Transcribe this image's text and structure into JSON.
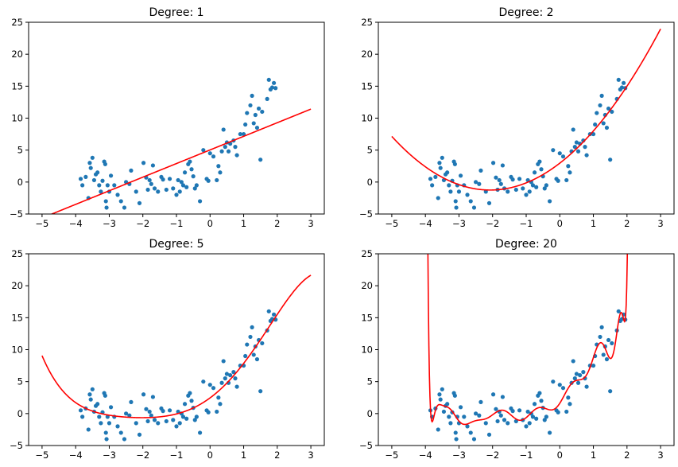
{
  "chart_data": [
    {
      "type": "scatter",
      "title": "Degree: 1",
      "xlim": [
        -5.4,
        3.4
      ],
      "ylim": [
        -5,
        25
      ],
      "xticks": [
        -5,
        -4,
        -3,
        -2,
        -1,
        0,
        1,
        2,
        3
      ],
      "yticks": [
        -5,
        0,
        5,
        10,
        15,
        20,
        25
      ],
      "xtick_labels": [
        "−5",
        "−4",
        "−3",
        "−2",
        "−1",
        "0",
        "1",
        "2",
        "3"
      ],
      "ytick_labels": [
        "−5",
        "0",
        "5",
        "10",
        "15",
        "20",
        "25"
      ],
      "fit": {
        "degree": 1,
        "color": "#ff0000"
      },
      "points_color": "#1f77b4"
    },
    {
      "type": "scatter",
      "title": "Degree: 2",
      "xlim": [
        -5.4,
        3.4
      ],
      "ylim": [
        -5,
        25
      ],
      "xticks": [
        -5,
        -4,
        -3,
        -2,
        -1,
        0,
        1,
        2,
        3
      ],
      "yticks": [
        -5,
        0,
        5,
        10,
        15,
        20,
        25
      ],
      "xtick_labels": [
        "−5",
        "−4",
        "−3",
        "−2",
        "−1",
        "0",
        "1",
        "2",
        "3"
      ],
      "ytick_labels": [
        "−5",
        "0",
        "5",
        "10",
        "15",
        "20",
        "25"
      ],
      "fit": {
        "degree": 2,
        "color": "#ff0000"
      },
      "points_color": "#1f77b4"
    },
    {
      "type": "scatter",
      "title": "Degree: 5",
      "xlim": [
        -5.4,
        3.4
      ],
      "ylim": [
        -5,
        25
      ],
      "xticks": [
        -5,
        -4,
        -3,
        -2,
        -1,
        0,
        1,
        2,
        3
      ],
      "yticks": [
        -5,
        0,
        5,
        10,
        15,
        20,
        25
      ],
      "xtick_labels": [
        "−5",
        "−4",
        "−3",
        "−2",
        "−1",
        "0",
        "1",
        "2",
        "3"
      ],
      "ytick_labels": [
        "−5",
        "0",
        "5",
        "10",
        "15",
        "20",
        "25"
      ],
      "fit": {
        "degree": 5,
        "color": "#ff0000"
      },
      "points_color": "#1f77b4"
    },
    {
      "type": "scatter",
      "title": "Degree: 20",
      "xlim": [
        -5.4,
        3.4
      ],
      "ylim": [
        -5,
        25
      ],
      "xticks": [
        -5,
        -4,
        -3,
        -2,
        -1,
        0,
        1,
        2,
        3
      ],
      "yticks": [
        -5,
        0,
        5,
        10,
        15,
        20,
        25
      ],
      "xtick_labels": [
        "−5",
        "−4",
        "−3",
        "−2",
        "−1",
        "0",
        "1",
        "2",
        "3"
      ],
      "ytick_labels": [
        "−5",
        "0",
        "5",
        "10",
        "15",
        "20",
        "25"
      ],
      "fit": {
        "degree": 20,
        "color": "#ff0000"
      },
      "points_color": "#1f77b4"
    }
  ],
  "shared_points": {
    "x": [
      -3.85,
      -3.8,
      -3.7,
      -3.62,
      -3.58,
      -3.55,
      -3.5,
      -3.45,
      -3.4,
      -3.35,
      -3.3,
      -3.25,
      -3.2,
      -3.15,
      -3.12,
      -3.1,
      -3.08,
      -3.05,
      -3.0,
      -2.95,
      -2.85,
      -2.75,
      -2.65,
      -2.55,
      -2.5,
      -2.4,
      -2.35,
      -2.2,
      -2.1,
      -1.98,
      -1.9,
      -1.85,
      -1.8,
      -1.75,
      -1.7,
      -1.65,
      -1.55,
      -1.45,
      -1.4,
      -1.3,
      -1.2,
      -1.1,
      -1.0,
      -0.95,
      -0.9,
      -0.85,
      -0.8,
      -0.75,
      -0.7,
      -0.65,
      -0.6,
      -0.55,
      -0.5,
      -0.45,
      -0.4,
      -0.3,
      -0.2,
      -0.1,
      -0.05,
      0.0,
      0.1,
      0.2,
      0.25,
      0.3,
      0.35,
      0.4,
      0.45,
      0.5,
      0.55,
      0.6,
      0.7,
      0.75,
      0.8,
      0.9,
      1.0,
      1.05,
      1.1,
      1.2,
      1.25,
      1.3,
      1.35,
      1.4,
      1.45,
      1.5,
      1.55,
      1.7,
      1.75,
      1.8,
      1.85,
      1.9,
      1.95
    ],
    "y": [
      0.5,
      -0.5,
      0.8,
      -2.5,
      3.0,
      2.2,
      3.8,
      0.3,
      1.2,
      1.5,
      -0.5,
      -1.5,
      0.2,
      3.2,
      2.8,
      -3.0,
      -4.0,
      -0.5,
      -1.5,
      1.0,
      -0.5,
      -2.0,
      -3.0,
      -4.0,
      0.0,
      -0.3,
      1.8,
      -1.5,
      -3.3,
      3.0,
      0.7,
      -1.2,
      0.3,
      -0.3,
      2.6,
      -1.0,
      -1.5,
      0.8,
      0.4,
      -1.2,
      0.5,
      -1.0,
      -2.0,
      0.3,
      -1.5,
      0.0,
      -0.5,
      1.5,
      -0.8,
      2.8,
      3.2,
      2.0,
      0.9,
      -1.0,
      -0.5,
      -3.0,
      5.0,
      0.5,
      0.2,
      4.5,
      4.0,
      0.3,
      2.5,
      1.5,
      4.8,
      8.2,
      5.5,
      6.2,
      4.8,
      6.0,
      6.5,
      5.5,
      4.2,
      7.5,
      7.5,
      9.0,
      10.8,
      12.0,
      13.5,
      9.2,
      10.5,
      8.5,
      11.5,
      3.5,
      11.0,
      13.0,
      16.0,
      14.5,
      14.8,
      15.5,
      14.7
    ],
    "yNoise": []
  }
}
